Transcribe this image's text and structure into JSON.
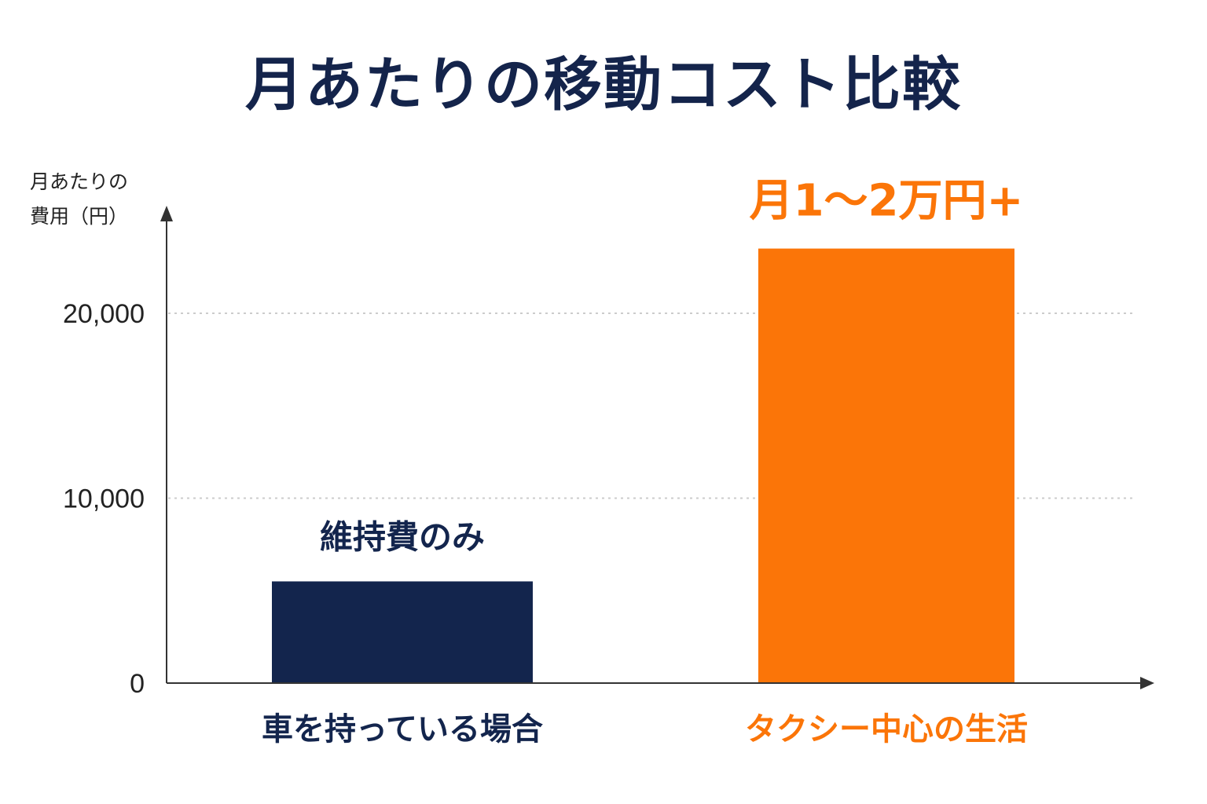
{
  "chart_data": {
    "type": "bar",
    "title": "月あたりの移動コスト比較",
    "ylabel": [
      "月あたりの",
      "費用（円）"
    ],
    "xlabel": "",
    "categories": [
      "車を持っている場合",
      "タクシー中心の生活"
    ],
    "values": [
      5500,
      23500
    ],
    "ylim": [
      0,
      24000
    ],
    "yticks": [
      0,
      10000,
      20000
    ],
    "ytick_labels": [
      "0",
      "10,000",
      "20,000"
    ],
    "grid": true,
    "annotations": [
      "維持費のみ",
      "月1〜2万円+"
    ],
    "colors": {
      "title": "#14244b",
      "bars": [
        "#13254d",
        "#fb7508"
      ],
      "labels": [
        "#13254d",
        "#fb7508"
      ],
      "axis": "#333333",
      "grid": "#cccccc"
    }
  }
}
